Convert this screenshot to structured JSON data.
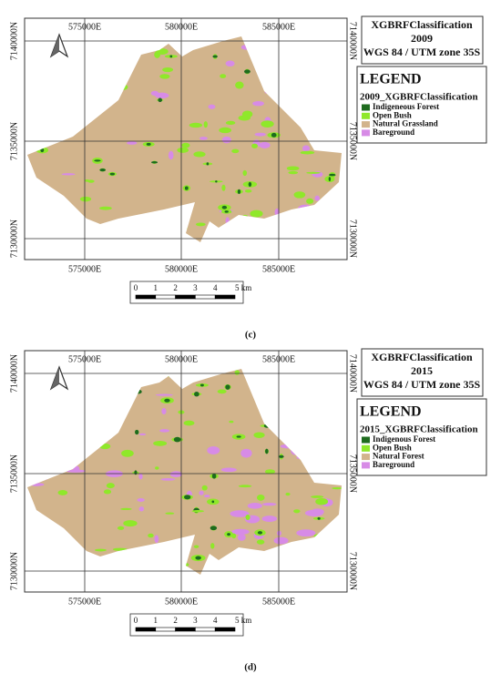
{
  "panels": [
    {
      "caption": "(c)",
      "title": "XGBRFClassification",
      "year": "2009",
      "crs": "WGS 84 / UTM zone 35S",
      "eastings": [
        "575000E",
        "580000E",
        "585000E"
      ],
      "northings": [
        "7140000N",
        "7135000N",
        "7130000N"
      ],
      "scale_labels": [
        "0",
        "1",
        "2",
        "3",
        "4",
        "5 km"
      ],
      "legend": {
        "heading": "LEGEND",
        "layer": "2009_XGBRFClassification",
        "items": [
          {
            "label": "Indigeneous Forest",
            "color": "#1e6b1e"
          },
          {
            "label": "Open Bush",
            "color": "#8fe82a"
          },
          {
            "label": "Natural Grassland",
            "color": "#d2b48c"
          },
          {
            "label": "Bareground",
            "color": "#d78be6"
          }
        ]
      }
    },
    {
      "caption": "(d)",
      "title": "XGBRFClassification",
      "year": "2015",
      "crs": "WGS 84 / UTM zone 35S",
      "eastings": [
        "575000E",
        "580000E",
        "585000E"
      ],
      "northings": [
        "7140000N",
        "7135000N",
        "7130000N"
      ],
      "scale_labels": [
        "0",
        "1",
        "2",
        "3",
        "4",
        "5 km"
      ],
      "legend": {
        "heading": "LEGEND",
        "layer": "2015_XGBRFClassification",
        "items": [
          {
            "label": "Indigenous Forest",
            "color": "#1e6b1e"
          },
          {
            "label": "Open Bush",
            "color": "#8fe82a"
          },
          {
            "label": "Natural Forest",
            "color": "#d2b48c"
          },
          {
            "label": "Bareground",
            "color": "#d78be6"
          }
        ]
      }
    }
  ]
}
